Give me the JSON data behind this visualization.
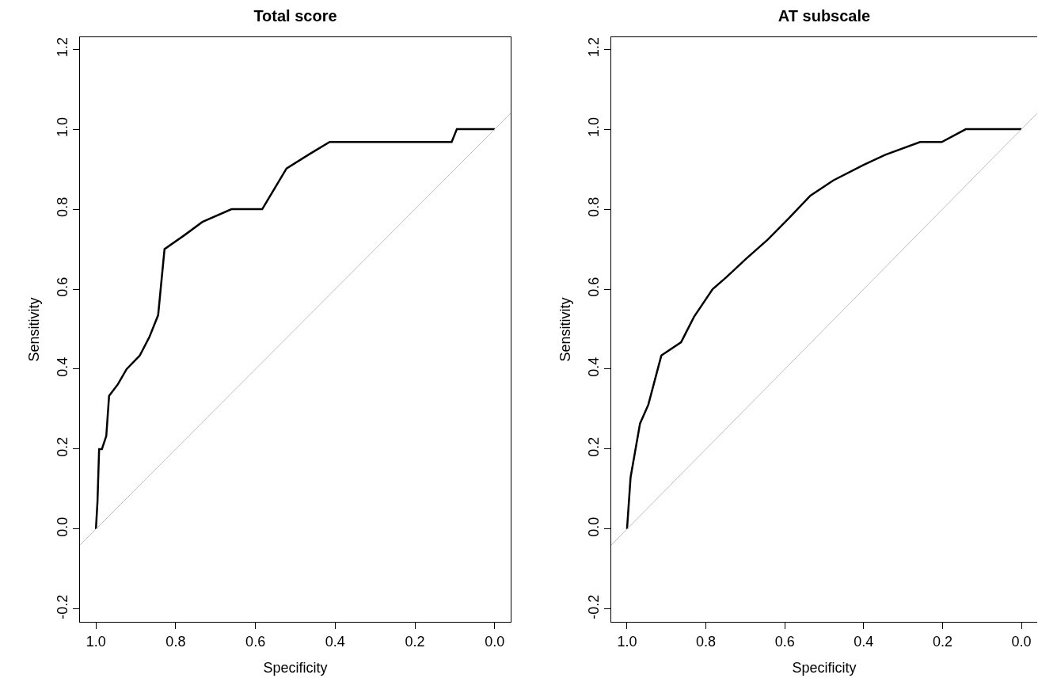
{
  "chart_data": [
    {
      "type": "line",
      "title": "Total score",
      "xlabel": "Specificity",
      "ylabel": "Sensitivity",
      "series": [
        {
          "color": "#000000",
          "x": [
            1.0,
            0.996,
            0.992,
            0.985,
            0.974,
            0.967,
            0.945,
            0.923,
            0.89,
            0.866,
            0.844,
            0.828,
            0.778,
            0.733,
            0.66,
            0.583,
            0.522,
            0.464,
            0.414,
            0.108,
            0.095,
            0.0
          ],
          "values": [
            0.0,
            0.07,
            0.2,
            0.2,
            0.233,
            0.333,
            0.362,
            0.4,
            0.434,
            0.48,
            0.535,
            0.7,
            0.735,
            0.768,
            0.8,
            0.8,
            0.902,
            0.938,
            0.968,
            0.968,
            1.0,
            1.0
          ]
        },
        {
          "color": "#bebebe",
          "x": [
            1.04,
            -0.04
          ],
          "values": [
            -0.04,
            1.04
          ]
        }
      ],
      "xlim": [
        1.04,
        -0.04
      ],
      "ylim": [
        -0.232,
        1.23
      ],
      "xticks": [
        {
          "value": 1.0,
          "label": "1.0"
        },
        {
          "value": 0.8,
          "label": "0.8"
        },
        {
          "value": 0.6,
          "label": "0.6"
        },
        {
          "value": 0.4,
          "label": "0.4"
        },
        {
          "value": 0.2,
          "label": "0.2"
        },
        {
          "value": 0.0,
          "label": "0.0"
        }
      ],
      "yticks": [
        {
          "value": -0.2,
          "label": "-0.2"
        },
        {
          "value": 0.0,
          "label": "0.0"
        },
        {
          "value": 0.2,
          "label": "0.2"
        },
        {
          "value": 0.4,
          "label": "0.4"
        },
        {
          "value": 0.6,
          "label": "0.6"
        },
        {
          "value": 0.8,
          "label": "0.8"
        },
        {
          "value": 1.0,
          "label": "1.0"
        },
        {
          "value": 1.2,
          "label": "1.2"
        }
      ],
      "grid": false,
      "marker": "none",
      "line_style": "solid"
    },
    {
      "type": "line",
      "title": "AT subscale",
      "xlabel": "Specificity",
      "ylabel": "Sensitivity",
      "series": [
        {
          "color": "#000000",
          "x": [
            1.0,
            0.996,
            0.991,
            0.967,
            0.946,
            0.913,
            0.863,
            0.83,
            0.783,
            0.748,
            0.698,
            0.643,
            0.588,
            0.535,
            0.477,
            0.4,
            0.345,
            0.257,
            0.202,
            0.141,
            0.0
          ],
          "values": [
            0.0,
            0.057,
            0.129,
            0.264,
            0.311,
            0.434,
            0.467,
            0.531,
            0.6,
            0.63,
            0.676,
            0.724,
            0.779,
            0.834,
            0.872,
            0.911,
            0.936,
            0.968,
            0.968,
            1.0,
            1.0
          ]
        },
        {
          "color": "#bebebe",
          "x": [
            1.04,
            -0.04
          ],
          "values": [
            -0.04,
            1.04
          ]
        }
      ],
      "xlim": [
        1.04,
        -0.04
      ],
      "ylim": [
        -0.232,
        1.23
      ],
      "xticks": [
        {
          "value": 1.0,
          "label": "1.0"
        },
        {
          "value": 0.8,
          "label": "0.8"
        },
        {
          "value": 0.6,
          "label": "0.6"
        },
        {
          "value": 0.4,
          "label": "0.4"
        },
        {
          "value": 0.2,
          "label": "0.2"
        },
        {
          "value": 0.0,
          "label": "0.0"
        }
      ],
      "yticks": [
        {
          "value": -0.2,
          "label": "-0.2"
        },
        {
          "value": 0.0,
          "label": "0.0"
        },
        {
          "value": 0.2,
          "label": "0.2"
        },
        {
          "value": 0.4,
          "label": "0.4"
        },
        {
          "value": 0.6,
          "label": "0.6"
        },
        {
          "value": 0.8,
          "label": "0.8"
        },
        {
          "value": 1.0,
          "label": "1.0"
        },
        {
          "value": 1.2,
          "label": "1.2"
        }
      ],
      "grid": false,
      "marker": "none",
      "line_style": "solid"
    }
  ]
}
